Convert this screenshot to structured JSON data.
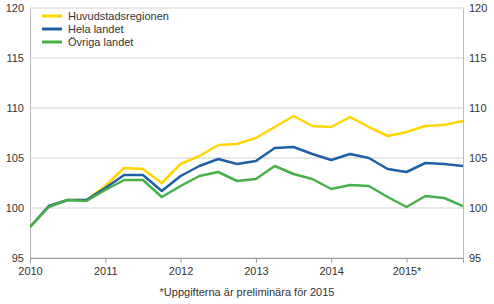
{
  "chart_data": {
    "type": "line",
    "note": "*Uppgifterna är preliminära för 2015",
    "categories": [
      "2010",
      null,
      null,
      null,
      "2011",
      null,
      null,
      null,
      "2012",
      null,
      null,
      null,
      "2013",
      null,
      null,
      null,
      "2014",
      null,
      null,
      null,
      "2015*",
      null,
      null,
      null
    ],
    "series": [
      {
        "name": "Huvudstadsregionen",
        "color": "#ffd700",
        "values": [
          98.1,
          100.2,
          100.8,
          100.8,
          102.2,
          104.0,
          103.9,
          102.5,
          104.4,
          105.2,
          106.3,
          106.4,
          107.0,
          108.1,
          109.2,
          108.2,
          108.1,
          109.1,
          108.1,
          107.2,
          107.6,
          108.2,
          108.3,
          108.7
        ]
      },
      {
        "name": "Hela landet",
        "color": "#1f5fa8",
        "values": [
          98.1,
          100.2,
          100.8,
          100.8,
          102.0,
          103.3,
          103.3,
          101.7,
          103.2,
          104.2,
          104.9,
          104.4,
          104.7,
          106.0,
          106.1,
          105.4,
          104.8,
          105.4,
          105.0,
          103.9,
          103.6,
          104.5,
          104.4,
          104.2
        ]
      },
      {
        "name": "Övriga landet",
        "color": "#47b04b",
        "values": [
          98.1,
          100.1,
          100.8,
          100.7,
          101.8,
          102.8,
          102.8,
          101.1,
          102.2,
          103.2,
          103.6,
          102.7,
          102.9,
          104.2,
          103.4,
          102.9,
          101.9,
          102.3,
          102.2,
          101.1,
          100.1,
          101.2,
          101.0,
          100.2
        ]
      }
    ],
    "ylim": [
      95,
      120
    ],
    "yticks": [
      95,
      100,
      105,
      110,
      115,
      120
    ],
    "y2lim": [
      95,
      120
    ],
    "y2ticks": [
      95,
      100,
      105,
      110,
      115,
      120
    ],
    "grid": true,
    "legend": "upper left"
  }
}
